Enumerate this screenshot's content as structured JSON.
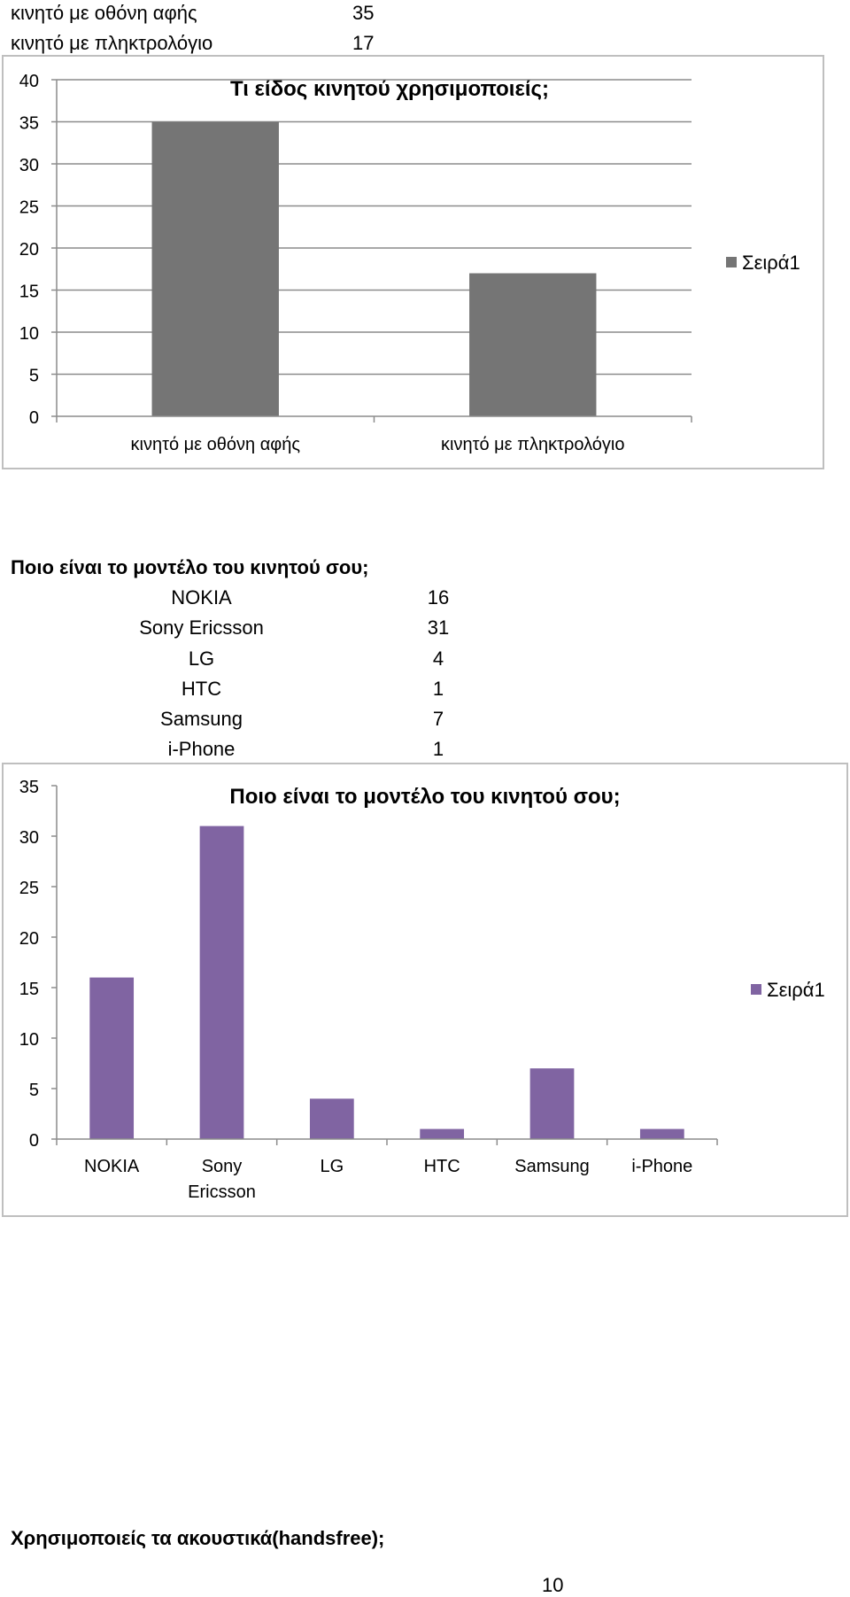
{
  "top_table": {
    "rows": [
      {
        "label": "κινητό με οθόνη αφής",
        "value": "35"
      },
      {
        "label": "κινητό με πληκτρολόγιο",
        "value": "17"
      }
    ]
  },
  "model_section": {
    "heading": "Ποιο είναι το μοντέλο του κινητού σου;",
    "rows": [
      {
        "label": "NOKIA",
        "value": "16"
      },
      {
        "label": "Sony Ericsson",
        "value": "31"
      },
      {
        "label": "LG",
        "value": "4"
      },
      {
        "label": "HTC",
        "value": "1"
      },
      {
        "label": "Samsung",
        "value": "7"
      },
      {
        "label": "i-Phone",
        "value": "1"
      }
    ]
  },
  "footer": {
    "question": "Χρησιμοποιείς τα ακουστικά(handsfree);",
    "page_number": "10"
  },
  "chart_data": [
    {
      "type": "bar",
      "title": "Τι είδος κινητού χρησιμοποιείς;",
      "categories": [
        "κινητό με οθόνη αφής",
        "κινητό με πληκτρολόγιο"
      ],
      "series": [
        {
          "name": "Σειρά1",
          "values": [
            35,
            17
          ]
        }
      ],
      "ylim": [
        0,
        40
      ],
      "yticks": [
        0,
        5,
        10,
        15,
        20,
        25,
        30,
        35,
        40
      ],
      "xlabel": "",
      "ylabel": "",
      "grid": true,
      "legend": "right",
      "color": "#757575"
    },
    {
      "type": "bar",
      "title": "Ποιο είναι το μοντέλο του κινητού σου;",
      "categories": [
        "NOKIA",
        "Sony Ericsson",
        "LG",
        "HTC",
        "Samsung",
        "i-Phone"
      ],
      "series": [
        {
          "name": "Σειρά1",
          "values": [
            16,
            31,
            4,
            1,
            7,
            1
          ]
        }
      ],
      "ylim": [
        0,
        35
      ],
      "yticks": [
        0,
        5,
        10,
        15,
        20,
        25,
        30,
        35
      ],
      "xlabel": "",
      "ylabel": "",
      "grid": false,
      "legend": "right",
      "color": "#8064a2"
    }
  ]
}
